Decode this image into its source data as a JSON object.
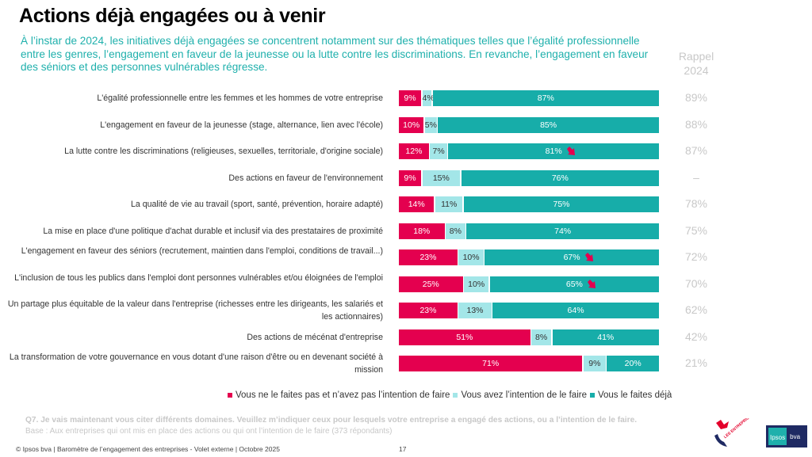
{
  "header": {
    "title": "Actions déjà engagées ou à venir",
    "subtitle": "À l’instar de 2024, les initiatives déjà engagées se concentrent notamment sur des thématiques telles que l’égalité professionnelle entre les genres, l’engagement en faveur de la jeunesse ou la lutte contre les discriminations. En revanche, l’engagement en faveur des séniors et des personnes vulnérables régresse.",
    "rappel_line1": "Rappel",
    "rappel_line2": "2024"
  },
  "colors": {
    "not_doing": "#e4004f",
    "intend": "#a3e6e8",
    "already": "#17ada9",
    "arrow": "#e4004f"
  },
  "chart_data": {
    "type": "bar",
    "orientation": "horizontal-stacked-100",
    "title": "Actions déjà engagées ou à venir",
    "xlim": [
      0,
      100
    ],
    "unit": "%",
    "legend_position": "bottom",
    "categories": [
      "L'égalité professionnelle entre les femmes et les hommes de votre entreprise",
      "L'engagement en faveur de la jeunesse (stage, alternance, lien avec l'école)",
      "La lutte contre les discriminations (religieuses, sexuelles, territoriale, d'origine sociale)",
      "Des actions en faveur de l'environnement",
      "La qualité de vie au travail (sport, santé, prévention, horaire adapté)",
      "La mise en place d'une politique d'achat durable et inclusif via des prestataires de proximité",
      "L'engagement en faveur des séniors (recrutement, maintien dans l'emploi, conditions de travail...)",
      "L'inclusion de tous les publics dans l'emploi dont personnes vulnérables et/ou éloignées de l'emploi",
      "Un partage plus équitable de la valeur dans l'entreprise (richesses entre les dirigeants, les salariés et les actionnaires)",
      "Des actions de mécénat d'entreprise",
      "La transformation de votre gouvernance en vous dotant d'une raison d'être ou en devenant société à mission"
    ],
    "series": [
      {
        "name": "Vous ne le faites pas et n’avez pas l’intention de faire",
        "values": [
          9,
          10,
          12,
          9,
          14,
          18,
          23,
          25,
          23,
          51,
          71
        ]
      },
      {
        "name": "Vous avez l’intention de le faire",
        "values": [
          4,
          5,
          7,
          15,
          11,
          8,
          10,
          10,
          13,
          8,
          9
        ]
      },
      {
        "name": "Vous le faites déjà",
        "values": [
          87,
          85,
          81,
          76,
          75,
          74,
          67,
          65,
          64,
          41,
          20
        ]
      }
    ],
    "rappel_2024": [
      "89%",
      "88%",
      "87%",
      "–",
      "78%",
      "75%",
      "72%",
      "70%",
      "62%",
      "42%",
      "21%"
    ],
    "significant_decrease": [
      false,
      false,
      true,
      false,
      false,
      false,
      true,
      true,
      false,
      false,
      false
    ]
  },
  "legend": [
    "Vous ne le faites pas et n’avez pas l’intention de faire",
    "Vous avez l’intention de le faire",
    "Vous le faites déjà"
  ],
  "footnotes": {
    "question": "Q7. Je vais maintenant vous citer différents domaines. Veuillez m’indiquer ceux pour lesquels votre entreprise a engagé des actions, ou a l’intention de le faire.",
    "base": "Base : Aux entreprises qui ont mis en place des actions ou qui ont l’intention de le faire (373 répondants)",
    "copyright": "© Ipsos bva | Baromètre de l’engagement des entreprises - Volet externe | Octobre 2025",
    "page_number": "17"
  },
  "logos": {
    "engagent": "LES ENTREPRISES S'ENGAGENT",
    "ipsos": "Ipsos",
    "bva": "bva"
  }
}
